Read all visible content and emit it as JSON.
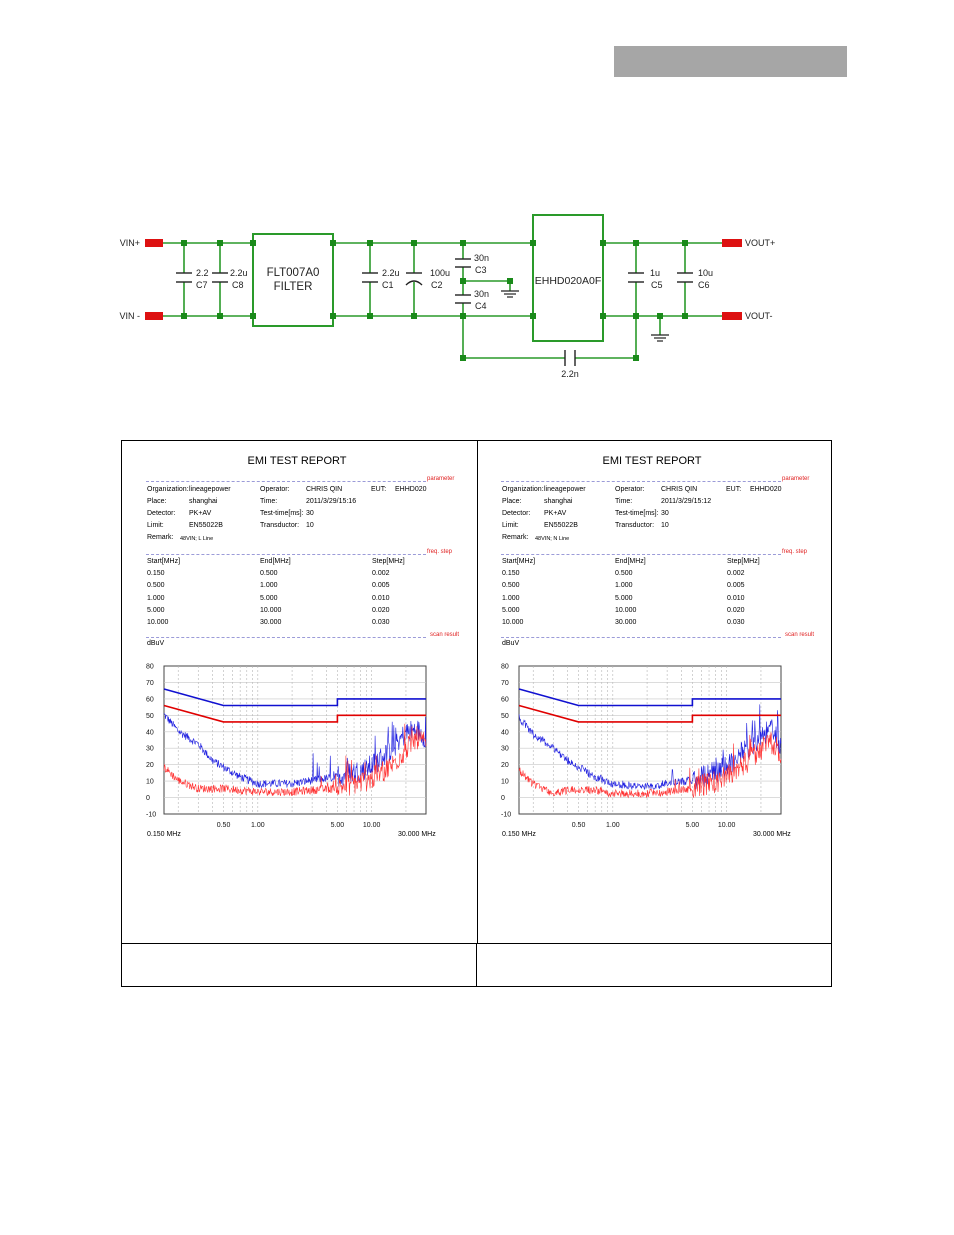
{
  "schematic": {
    "labels": {
      "vin_plus": "VIN+",
      "vin_minus": "VIN -",
      "vout_plus": "VOUT+",
      "vout_minus": "VOUT-",
      "filter_line1": "FLT007A0",
      "filter_line2": "FILTER",
      "module": "EHHD020A0F"
    },
    "capacitors": [
      {
        "value": "2.2",
        "ref": "C7"
      },
      {
        "value": "2.2u",
        "ref": "C8"
      },
      {
        "value": "2.2u",
        "ref": "C1"
      },
      {
        "value": "100u",
        "ref": "C2"
      },
      {
        "value": "30n",
        "ref": "C3"
      },
      {
        "value": "30n",
        "ref": "C4"
      },
      {
        "value": "1u",
        "ref": "C5"
      },
      {
        "value": "10u",
        "ref": "C6"
      },
      {
        "value": "2.2n",
        "ref": ""
      }
    ],
    "colors": {
      "wire": "#2a9a2a",
      "node": "#1a8a1a",
      "terminal": "#dd1111"
    }
  },
  "reports": [
    {
      "title": "EMI TEST REPORT",
      "section_parameter": "parameter",
      "section_freq": "freq. step",
      "section_scan": "scan result",
      "organization_label": "Organization:",
      "organization": "lineagepower",
      "operator_label": "Operator:",
      "operator": "CHRIS QIN",
      "eut_label": "EUT:",
      "eut": "EHHD020",
      "place_label": "Place:",
      "place": "shanghai",
      "time_label": "Time:",
      "time": "2011/3/29/15:16",
      "detector_label": "Detector:",
      "detector": "PK+AV",
      "testtime_label": "Test-time[ms]:",
      "testtime": "30",
      "limit_label": "Limit:",
      "limit": "EN55022B",
      "transductor_label": "Transductor:",
      "transductor": "10",
      "remark_label": "Remark:",
      "remark": "48VIN; L Line",
      "freq_headers": [
        "Start[MHz]",
        "End[MHz]",
        "Step[MHz]"
      ],
      "freq_rows": [
        [
          "0.150",
          "0.500",
          "0.002"
        ],
        [
          "0.500",
          "1.000",
          "0.005"
        ],
        [
          "1.000",
          "5.000",
          "0.010"
        ],
        [
          "5.000",
          "10.000",
          "0.020"
        ],
        [
          "10.000",
          "30.000",
          "0.030"
        ]
      ],
      "unit": "dBuV",
      "x_start_label": "0.150 MHz",
      "x_end_label": "30.000 MHz"
    },
    {
      "title": "EMI TEST REPORT",
      "section_parameter": "parameter",
      "section_freq": "freq. step",
      "section_scan": "scan result",
      "organization_label": "Organization:",
      "organization": "lineagepower",
      "operator_label": "Operator:",
      "operator": "CHRIS QIN",
      "eut_label": "EUT:",
      "eut": "EHHD020",
      "place_label": "Place:",
      "place": "shanghai",
      "time_label": "Time:",
      "time": "2011/3/29/15:12",
      "detector_label": "Detector:",
      "detector": "PK+AV",
      "testtime_label": "Test-time[ms]:",
      "testtime": "30",
      "limit_label": "Limit:",
      "limit": "EN55022B",
      "transductor_label": "Transductor:",
      "transductor": "10",
      "remark_label": "Remark:",
      "remark": "48VIN; N Line",
      "freq_headers": [
        "Start[MHz]",
        "End[MHz]",
        "Step[MHz]"
      ],
      "freq_rows": [
        [
          "0.150",
          "0.500",
          "0.002"
        ],
        [
          "0.500",
          "1.000",
          "0.005"
        ],
        [
          "1.000",
          "5.000",
          "0.010"
        ],
        [
          "5.000",
          "10.000",
          "0.020"
        ],
        [
          "10.000",
          "30.000",
          "0.030"
        ]
      ],
      "unit": "dBuV",
      "x_start_label": "0.150 MHz",
      "x_end_label": "30.000 MHz"
    }
  ],
  "chart_data": [
    {
      "type": "line",
      "xlabel": "",
      "ylabel": "dBuV",
      "x_scale": "log",
      "xlim": [
        0.15,
        30
      ],
      "ylim": [
        -10,
        80
      ],
      "y_ticks": [
        "80",
        "70",
        "60",
        "50",
        "40",
        "30",
        "20",
        "10",
        "0",
        "-10"
      ],
      "x_ticks": [
        {
          "value": 0.5,
          "label": "0.50"
        },
        {
          "value": 1.0,
          "label": "1.00"
        },
        {
          "value": 5.0,
          "label": "5.00"
        },
        {
          "value": 10.0,
          "label": "10.00"
        }
      ],
      "grid": true,
      "series": [
        {
          "role": "quasi-peak limit",
          "color": "#1010d0",
          "x": [
            0.15,
            0.5,
            5.0,
            5.0,
            30.0
          ],
          "y": [
            66,
            56,
            56,
            60,
            60
          ]
        },
        {
          "role": "average limit",
          "color": "#e00000",
          "x": [
            0.15,
            0.5,
            5.0,
            5.0,
            30.0
          ],
          "y": [
            56,
            46,
            46,
            50,
            50
          ]
        },
        {
          "role": "peak scan",
          "color": "#2020e0",
          "x": [
            0.15,
            0.2,
            0.3,
            0.4,
            0.5,
            0.7,
            1.0,
            2.0,
            3.0,
            5.0,
            8.0,
            10.0,
            15.0,
            20.0,
            25.0,
            30.0
          ],
          "y": [
            50,
            40,
            32,
            22,
            18,
            12,
            8,
            8,
            10,
            12,
            15,
            18,
            28,
            38,
            40,
            35
          ]
        },
        {
          "role": "average scan",
          "color": "#ff3030",
          "x": [
            0.15,
            0.2,
            0.3,
            0.4,
            0.5,
            0.7,
            1.0,
            2.0,
            3.0,
            5.0,
            8.0,
            10.0,
            15.0,
            20.0,
            25.0,
            30.0
          ],
          "y": [
            18,
            10,
            5,
            5,
            5,
            4,
            3,
            3,
            4,
            5,
            8,
            10,
            18,
            28,
            35,
            30
          ]
        }
      ]
    },
    {
      "type": "line",
      "xlabel": "",
      "ylabel": "dBuV",
      "x_scale": "log",
      "xlim": [
        0.15,
        30
      ],
      "ylim": [
        -10,
        80
      ],
      "y_ticks": [
        "80",
        "70",
        "60",
        "50",
        "40",
        "30",
        "20",
        "10",
        "0",
        "-10"
      ],
      "x_ticks": [
        {
          "value": 0.5,
          "label": "0.50"
        },
        {
          "value": 1.0,
          "label": "1.00"
        },
        {
          "value": 5.0,
          "label": "5.00"
        },
        {
          "value": 10.0,
          "label": "10.00"
        }
      ],
      "grid": true,
      "series": [
        {
          "role": "quasi-peak limit",
          "color": "#1010d0",
          "x": [
            0.15,
            0.5,
            5.0,
            5.0,
            30.0
          ],
          "y": [
            66,
            56,
            56,
            60,
            60
          ]
        },
        {
          "role": "average limit",
          "color": "#e00000",
          "x": [
            0.15,
            0.5,
            5.0,
            5.0,
            30.0
          ],
          "y": [
            56,
            46,
            46,
            50,
            50
          ]
        },
        {
          "role": "peak scan",
          "color": "#2020e0",
          "x": [
            0.15,
            0.2,
            0.3,
            0.4,
            0.5,
            0.7,
            1.0,
            2.0,
            3.0,
            5.0,
            8.0,
            10.0,
            15.0,
            20.0,
            25.0,
            30.0
          ],
          "y": [
            48,
            38,
            30,
            22,
            18,
            12,
            8,
            6,
            8,
            10,
            14,
            18,
            28,
            36,
            40,
            30
          ]
        },
        {
          "role": "average scan",
          "color": "#ff3030",
          "x": [
            0.15,
            0.2,
            0.3,
            0.4,
            0.5,
            0.7,
            1.0,
            2.0,
            3.0,
            5.0,
            8.0,
            10.0,
            15.0,
            20.0,
            25.0,
            30.0
          ],
          "y": [
            16,
            8,
            2,
            4,
            5,
            4,
            2,
            2,
            3,
            5,
            8,
            12,
            20,
            28,
            32,
            25
          ]
        }
      ]
    }
  ]
}
